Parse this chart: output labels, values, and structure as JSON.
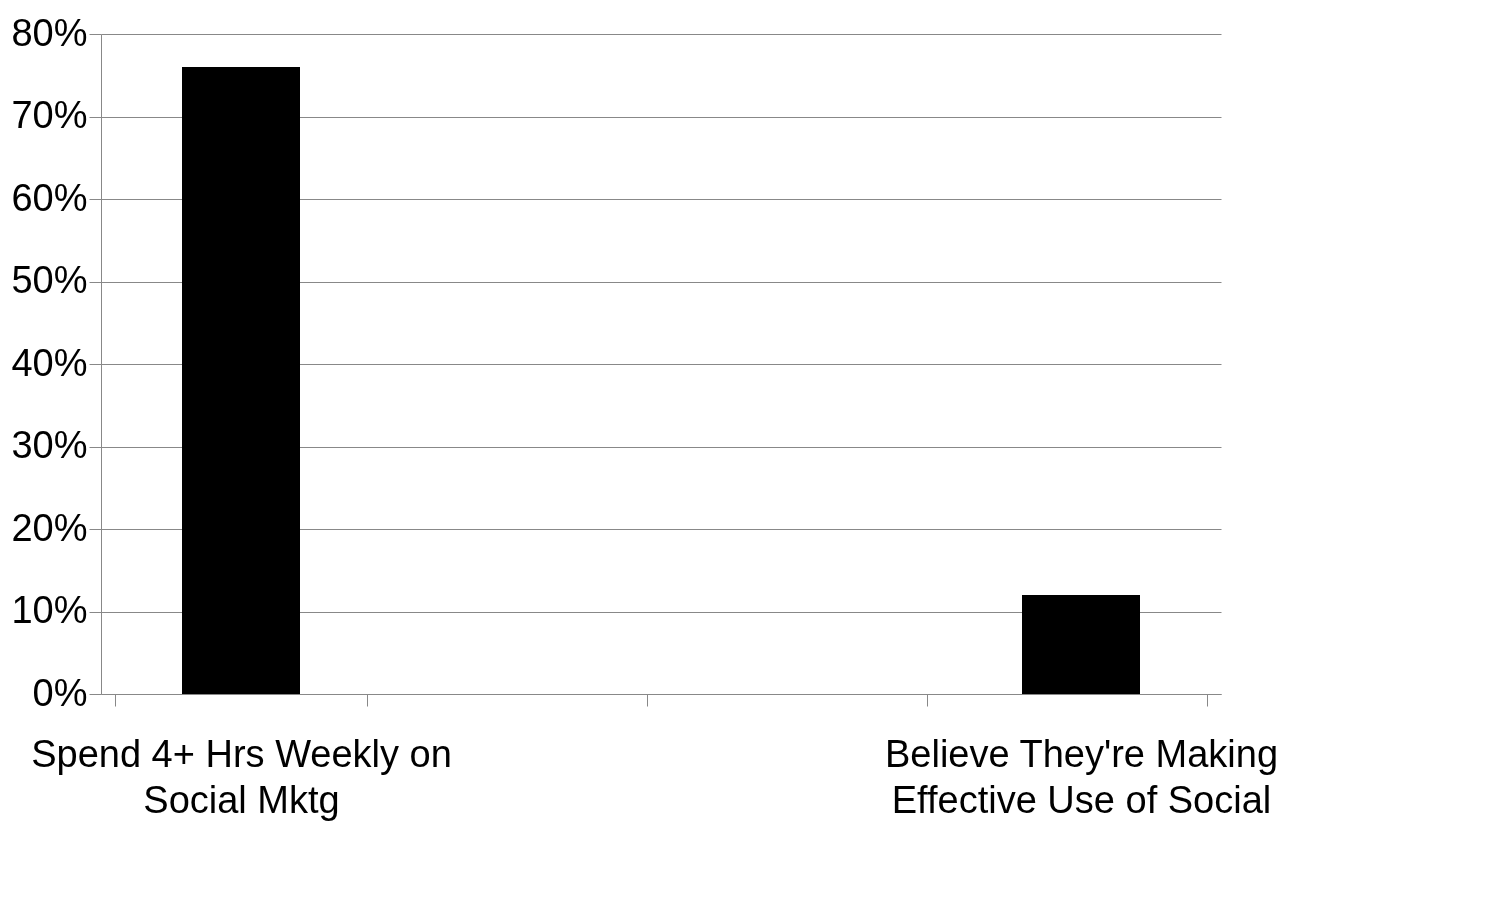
{
  "chart_data": {
    "type": "bar",
    "categories": [
      "Spend 4+ Hrs Weekly on Social Mktg",
      null,
      null,
      "Believe They're Making Effective Use of Social"
    ],
    "values": [
      76,
      null,
      null,
      12
    ],
    "color": "#000000",
    "ylim": [
      0,
      80
    ],
    "yticks": [
      {
        "value": 0,
        "label": "0%"
      },
      {
        "value": 10,
        "label": "10%"
      },
      {
        "value": 20,
        "label": "20%"
      },
      {
        "value": 30,
        "label": "30%"
      },
      {
        "value": 40,
        "label": "40%"
      },
      {
        "value": 50,
        "label": "50%"
      },
      {
        "value": 60,
        "label": "60%"
      },
      {
        "value": 70,
        "label": "70%"
      },
      {
        "value": 80,
        "label": "80%"
      }
    ],
    "grid": "y"
  }
}
